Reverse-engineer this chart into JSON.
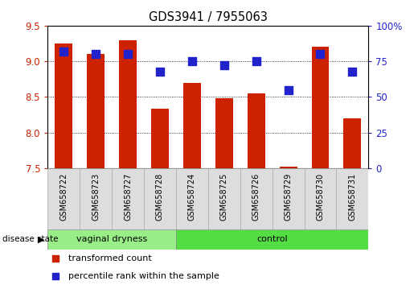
{
  "title": "GDS3941 / 7955063",
  "samples": [
    "GSM658722",
    "GSM658723",
    "GSM658727",
    "GSM658728",
    "GSM658724",
    "GSM658725",
    "GSM658726",
    "GSM658729",
    "GSM658730",
    "GSM658731"
  ],
  "bar_values": [
    9.25,
    9.1,
    9.3,
    8.33,
    8.7,
    8.48,
    8.55,
    7.52,
    9.2,
    8.2
  ],
  "blue_values": [
    82,
    80,
    80,
    68,
    75,
    72,
    75,
    55,
    80,
    68
  ],
  "bar_bottom": 7.5,
  "ylim_left": [
    7.5,
    9.5
  ],
  "ylim_right": [
    0,
    100
  ],
  "yticks_left": [
    7.5,
    8.0,
    8.5,
    9.0,
    9.5
  ],
  "yticks_right": [
    0,
    25,
    50,
    75,
    100
  ],
  "bar_color": "#cc2200",
  "dot_color": "#2222cc",
  "group_color_vaginal": "#99ee88",
  "group_color_control": "#55dd44",
  "label_transformed": "transformed count",
  "label_percentile": "percentile rank within the sample",
  "disease_state_label": "disease state",
  "vaginal_label": "vaginal dryness",
  "control_label": "control",
  "tick_label_color_left": "#cc2200",
  "tick_label_color_right": "#2222cc",
  "bar_width": 0.55,
  "dot_size": 45,
  "n_vaginal": 4,
  "n_control": 6
}
